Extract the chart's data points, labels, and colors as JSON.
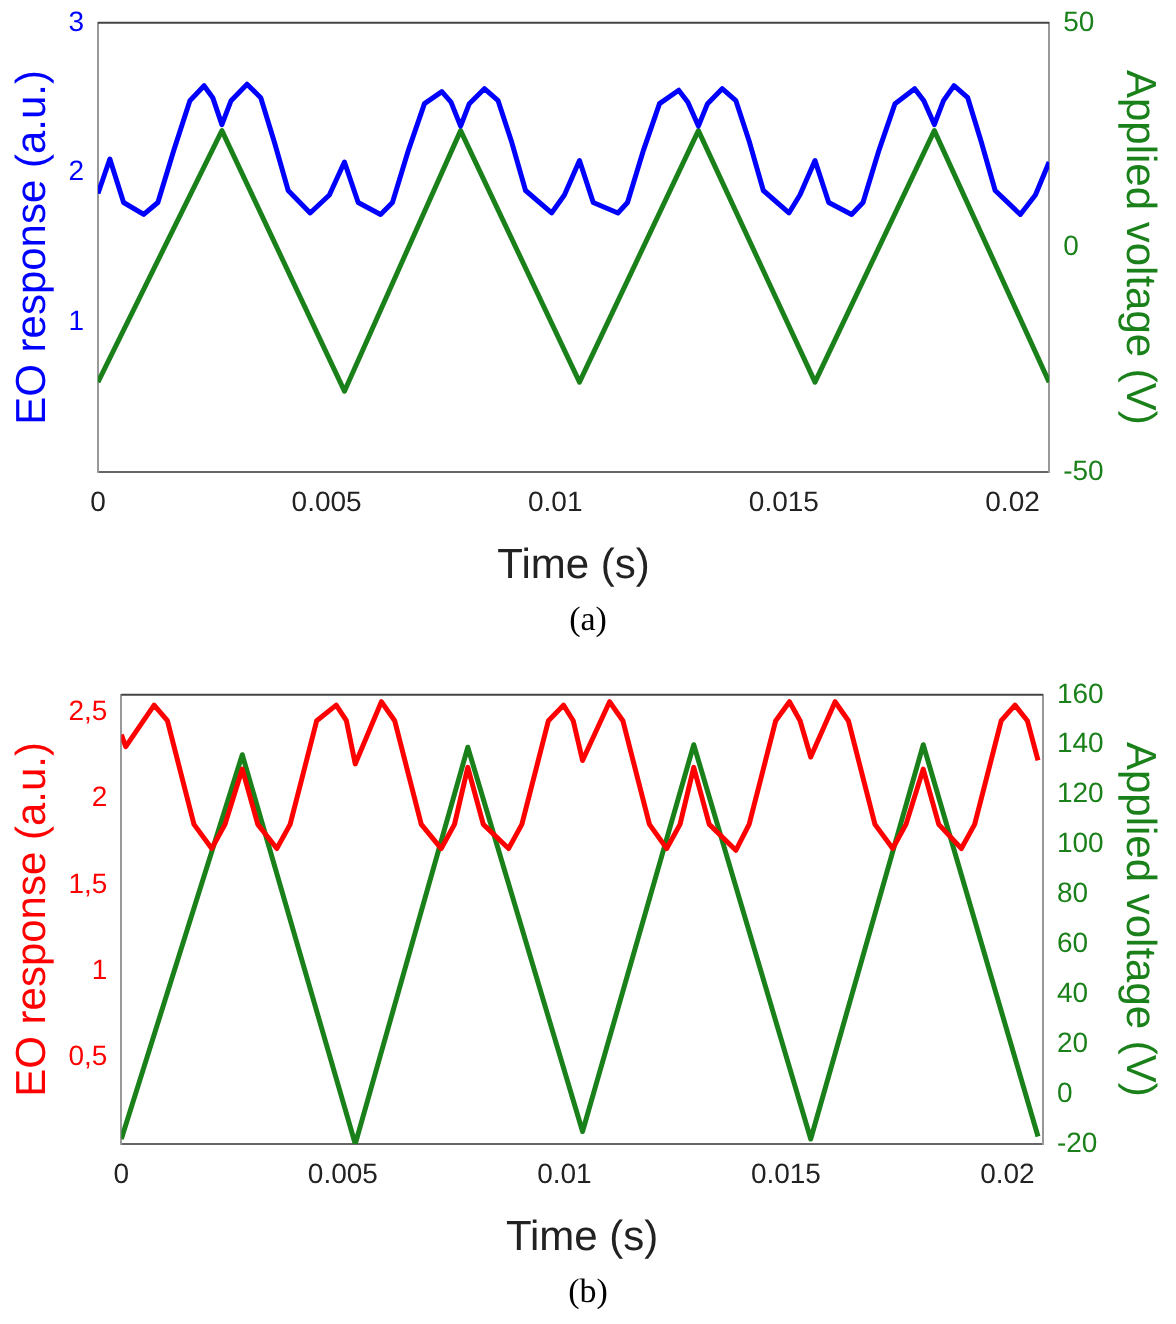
{
  "chart_data": [
    {
      "type": "line",
      "xlabel": "Time (s)",
      "ylabel": "EO response (a.u.)",
      "y2label": "Applied voltage (V)",
      "annotations": [
        "(a)"
      ],
      "xlim": [
        0,
        0.0208
      ],
      "xticks": [
        0,
        0.005,
        0.01,
        0.015,
        0.02
      ],
      "ylim": [
        0,
        3
      ],
      "yticks": [
        1,
        2,
        3
      ],
      "y2lim": [
        -50,
        50
      ],
      "y2ticks": [
        -50,
        0,
        50
      ],
      "grid": false,
      "legend": false,
      "marker": "none",
      "line_style": "solid",
      "series": [
        {
          "color": "#0000ff",
          "x": [
            0,
            0.00026,
            0.00056,
            0.001,
            0.00131,
            0.00166,
            0.00201,
            0.00232,
            0.00251,
            0.00271,
            0.00291,
            0.00326,
            0.00356,
            0.00386,
            0.00416,
            0.00464,
            0.00506,
            0.00539,
            0.00569,
            0.00618,
            0.00644,
            0.00679,
            0.00714,
            0.00752,
            0.00772,
            0.00793,
            0.00812,
            0.00845,
            0.00875,
            0.00905,
            0.00935,
            0.00992,
            0.0102,
            0.01053,
            0.01083,
            0.01137,
            0.01158,
            0.01193,
            0.01228,
            0.0127,
            0.0129,
            0.01313,
            0.01333,
            0.01365,
            0.01395,
            0.01425,
            0.01455,
            0.01511,
            0.01535,
            0.01568,
            0.01598,
            0.01648,
            0.01673,
            0.01708,
            0.01743,
            0.01786,
            0.01806,
            0.01829,
            0.01849,
            0.01872,
            0.01902,
            0.01932,
            0.01962,
            0.02017,
            0.0205,
            0.0208
          ],
          "values": [
            1.86,
            2.09,
            1.8,
            1.72,
            1.8,
            2.15,
            2.48,
            2.58,
            2.5,
            2.32,
            2.48,
            2.59,
            2.5,
            2.2,
            1.88,
            1.73,
            1.85,
            2.07,
            1.8,
            1.72,
            1.8,
            2.15,
            2.46,
            2.54,
            2.47,
            2.31,
            2.46,
            2.56,
            2.48,
            2.2,
            1.88,
            1.73,
            1.85,
            2.08,
            1.8,
            1.73,
            1.8,
            2.15,
            2.46,
            2.55,
            2.47,
            2.31,
            2.46,
            2.56,
            2.48,
            2.2,
            1.88,
            1.73,
            1.85,
            2.08,
            1.8,
            1.72,
            1.8,
            2.15,
            2.46,
            2.56,
            2.48,
            2.32,
            2.48,
            2.58,
            2.5,
            2.2,
            1.88,
            1.72,
            1.85,
            2.07
          ]
        },
        {
          "color": "#1a801a",
          "axis": "y2",
          "x": [
            0,
            0.00271,
            0.00539,
            0.00793,
            0.01053,
            0.01313,
            0.01568,
            0.01829,
            0.0208
          ],
          "values": [
            -30,
            26,
            -32,
            26,
            -30,
            26,
            -30,
            26,
            -30
          ]
        }
      ]
    },
    {
      "type": "line",
      "xlabel": "Time (s)",
      "ylabel": "EO response (a.u.)",
      "y2label": "Applied voltage (V)",
      "annotations": [
        "(b)"
      ],
      "xlim": [
        0,
        0.0208
      ],
      "xticks": [
        0,
        0.005,
        0.01,
        0.015,
        0.02
      ],
      "ylim": [
        0,
        2.6
      ],
      "yticks": [
        {
          "value": 0.5,
          "label": "0,5"
        },
        1,
        {
          "value": 1.5,
          "label": "1,5"
        },
        2,
        {
          "value": 2.5,
          "label": "2,5"
        }
      ],
      "y2lim": [
        -20,
        160
      ],
      "y2ticks": [
        -20,
        0,
        20,
        40,
        60,
        80,
        100,
        120,
        140,
        160
      ],
      "grid": false,
      "legend": false,
      "marker": "none",
      "line_style": "solid",
      "series": [
        {
          "color": "#ff0000",
          "x": [
            0,
            0.0001,
            0.00074,
            0.00104,
            0.00134,
            0.00164,
            0.00204,
            0.00234,
            0.00273,
            0.00308,
            0.00351,
            0.00381,
            0.00411,
            0.00441,
            0.00485,
            0.00508,
            0.00528,
            0.00587,
            0.00617,
            0.00647,
            0.00677,
            0.00722,
            0.00752,
            0.00782,
            0.00817,
            0.00874,
            0.00904,
            0.00934,
            0.00964,
            0.00998,
            0.0102,
            0.01041,
            0.01102,
            0.01132,
            0.01162,
            0.01192,
            0.01231,
            0.01261,
            0.01292,
            0.01327,
            0.01387,
            0.01417,
            0.01447,
            0.01477,
            0.01508,
            0.01532,
            0.01556,
            0.01611,
            0.01641,
            0.01671,
            0.01701,
            0.01741,
            0.01771,
            0.0181,
            0.01845,
            0.01896,
            0.01926,
            0.01956,
            0.01986,
            0.02017,
            0.02045,
            0.02069
          ],
          "values": [
            2.37,
            2.3,
            2.54,
            2.45,
            2.15,
            1.85,
            1.71,
            1.85,
            2.17,
            1.85,
            1.71,
            1.85,
            2.15,
            2.45,
            2.54,
            2.45,
            2.2,
            2.56,
            2.45,
            2.15,
            1.85,
            1.71,
            1.85,
            2.18,
            1.85,
            1.71,
            1.85,
            2.15,
            2.45,
            2.54,
            2.45,
            2.22,
            2.56,
            2.45,
            2.15,
            1.85,
            1.71,
            1.85,
            2.18,
            1.85,
            1.7,
            1.85,
            2.15,
            2.45,
            2.56,
            2.45,
            2.24,
            2.56,
            2.45,
            2.15,
            1.85,
            1.71,
            1.85,
            2.17,
            1.85,
            1.71,
            1.85,
            2.15,
            2.45,
            2.54,
            2.45,
            2.22
          ]
        },
        {
          "color": "#1a801a",
          "axis": "y2",
          "x": [
            0,
            0.00273,
            0.00528,
            0.00782,
            0.01041,
            0.01292,
            0.01556,
            0.0181,
            0.02069
          ],
          "values": [
            -18,
            136,
            -20,
            139,
            -15,
            140,
            -18,
            140,
            -17
          ]
        }
      ]
    }
  ]
}
